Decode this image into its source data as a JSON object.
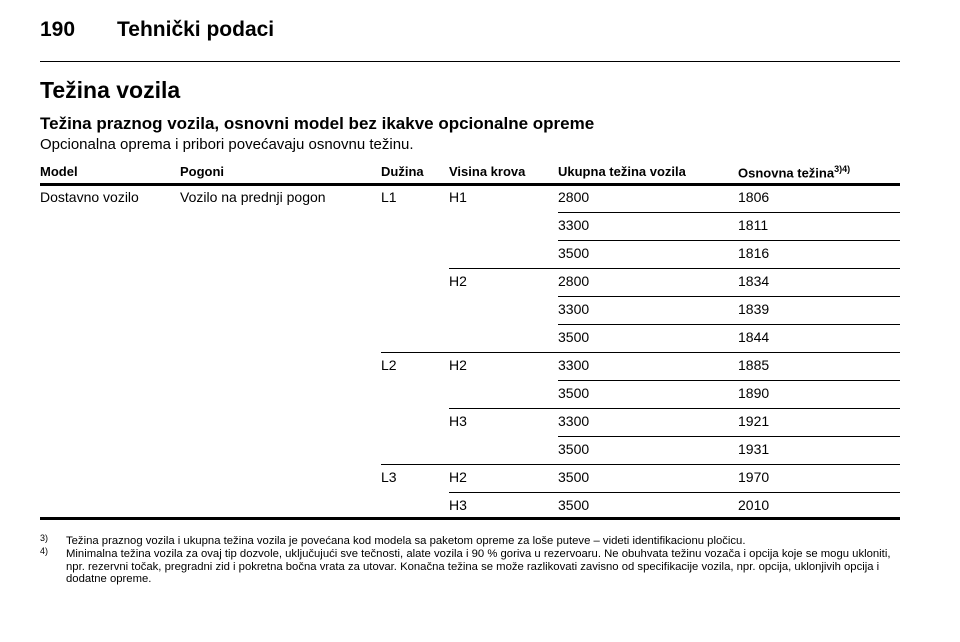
{
  "header": {
    "page": "190",
    "section": "Tehnički podaci"
  },
  "title": "Težina vozila",
  "subtitle": "Težina praznog vozila, osnovni model bez ikakve opcionalne opreme",
  "description": "Opcionalna oprema i pribori povećavaju osnovnu težinu.",
  "table": {
    "columns": [
      "Model",
      "Pogoni",
      "Dužina",
      "Visina krova",
      "Ukupna težina vozila",
      "Osnovna težina"
    ],
    "last_column_note": "3)4)",
    "rows": [
      [
        "Dostavno vozilo",
        "Vozilo na prednji pogon",
        "L1",
        "H1",
        2800,
        1806
      ],
      [
        null,
        null,
        null,
        null,
        3300,
        1811
      ],
      [
        null,
        null,
        null,
        null,
        3500,
        1816
      ],
      [
        null,
        null,
        null,
        "H2",
        2800,
        1834
      ],
      [
        null,
        null,
        null,
        null,
        3300,
        1839
      ],
      [
        null,
        null,
        null,
        null,
        3500,
        1844
      ],
      [
        null,
        null,
        "L2",
        "H2",
        3300,
        1885
      ],
      [
        null,
        null,
        null,
        null,
        3500,
        1890
      ],
      [
        null,
        null,
        null,
        "H3",
        3300,
        1921
      ],
      [
        null,
        null,
        null,
        null,
        3500,
        1931
      ],
      [
        null,
        null,
        "L3",
        "H2",
        3500,
        1970
      ],
      [
        null,
        null,
        null,
        "H3",
        3500,
        2010
      ]
    ]
  },
  "footnotes": [
    {
      "marker": "3)",
      "text": "Težina praznog vozila i ukupna težina vozila je povećana kod modela sa paketom opreme za loše puteve – videti identifikacionu pločicu."
    },
    {
      "marker": "4)",
      "text": "Minimalna težina vozila za ovaj tip dozvole, uključujući sve tečnosti, alate vozila i 90 % goriva u rezervoaru. Ne obuhvata težinu vozača i opcija koje se mogu ukloniti, npr. rezervni točak, pregradni zid i pokretna bočna vrata za utovar. Konačna težina se može razlikovati zavisno od specifikacije vozila, npr. opcija, uklonjivih opcija i dodatne opreme."
    }
  ]
}
